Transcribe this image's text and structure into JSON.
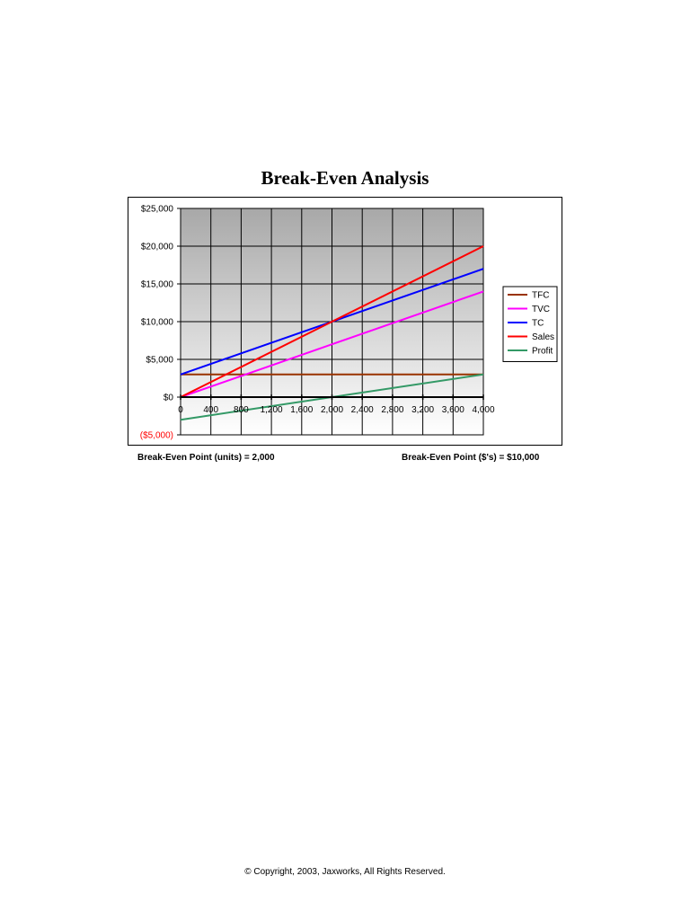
{
  "chart_data": {
    "type": "line",
    "title": "Break-Even Analysis",
    "x": [
      0,
      4000
    ],
    "xlim": [
      0,
      4000
    ],
    "ylim": [
      -5000,
      25000
    ],
    "x_ticks": [
      0,
      400,
      800,
      1200,
      1600,
      2000,
      2400,
      2800,
      3200,
      3600,
      4000
    ],
    "x_tick_labels": [
      "0",
      "400",
      "800",
      "1,200",
      "1,600",
      "2,000",
      "2,400",
      "2,800",
      "3,200",
      "3,600",
      "4,000"
    ],
    "y_ticks": [
      -5000,
      0,
      5000,
      10000,
      15000,
      20000,
      25000
    ],
    "y_tick_labels": [
      "($5,000)",
      "$0",
      "$5,000",
      "$10,000",
      "$15,000",
      "$20,000",
      "$25,000"
    ],
    "negative_tick_color": "#ff0000",
    "grid": true,
    "legend_position": "right",
    "plot_background": [
      "#a8a8a8",
      "#ffffff"
    ],
    "series": [
      {
        "name": "TFC",
        "color": "#993300",
        "values": [
          3000,
          3000
        ]
      },
      {
        "name": "TVC",
        "color": "#ff00ff",
        "values": [
          0,
          14000
        ]
      },
      {
        "name": "TC",
        "color": "#0000ff",
        "values": [
          3000,
          17000
        ]
      },
      {
        "name": "Sales",
        "color": "#ff0000",
        "values": [
          0,
          20000
        ]
      },
      {
        "name": "Profit",
        "color": "#339966",
        "values": [
          -3000,
          3000
        ]
      }
    ]
  },
  "footer": {
    "bep_units": "Break-Even Point (units) = 2,000",
    "bep_dollars": "Break-Even Point ($'s) = $10,000",
    "copyright": "© Copyright, 2003, Jaxworks, All Rights Reserved."
  }
}
